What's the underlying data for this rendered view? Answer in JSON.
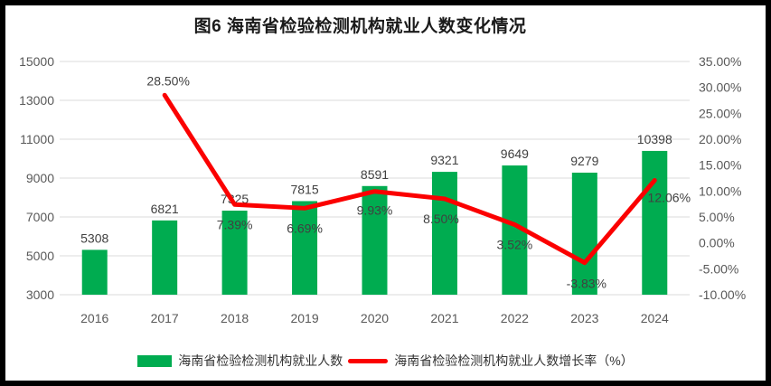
{
  "title": "图6  海南省检验检测机构就业人数变化情况",
  "chart_data": {
    "type": "bar+line combo",
    "title": "图6  海南省检验检测机构就业人数变化情况",
    "categories": [
      "2016",
      "2017",
      "2018",
      "2019",
      "2020",
      "2021",
      "2022",
      "2023",
      "2024"
    ],
    "series": [
      {
        "name": "海南省检验检测机构就业人数",
        "type": "bar",
        "axis": "left",
        "color": "#00AC50",
        "values": [
          5308,
          6821,
          7325,
          7815,
          8591,
          9321,
          9649,
          9279,
          10398
        ],
        "labels": [
          "5308",
          "6821",
          "7325",
          "7815",
          "8591",
          "9321",
          "9649",
          "9279",
          "10398"
        ]
      },
      {
        "name": "海南省检验检测机构就业人数增长率（%）",
        "type": "line",
        "axis": "right",
        "color": "#FB0000",
        "values": [
          null,
          28.5,
          7.39,
          6.69,
          9.93,
          8.5,
          3.52,
          -3.83,
          12.06
        ],
        "labels": [
          "28.50%",
          "7.39%",
          "6.69%",
          "9.93%",
          "8.50%",
          "3.52%",
          "-3.83%",
          "12.06%"
        ],
        "label_offsets": [
          [
            4,
            -11
          ],
          [
            0,
            27
          ],
          [
            0,
            27
          ],
          [
            0,
            26
          ],
          [
            -4,
            27
          ],
          [
            0,
            27
          ],
          [
            2,
            28
          ],
          [
            16,
            24
          ]
        ]
      }
    ],
    "left_axis": {
      "min": 3000,
      "max": 15000,
      "step": 2000,
      "ticks": [
        "3000",
        "5000",
        "7000",
        "9000",
        "11000",
        "13000",
        "15000"
      ]
    },
    "right_axis": {
      "min": -10,
      "max": 35,
      "step": 5,
      "ticks": [
        "-10.00%",
        "-5.00%",
        "0.00%",
        "5.00%",
        "10.00%",
        "15.00%",
        "20.00%",
        "25.00%",
        "30.00%",
        "35.00%"
      ]
    },
    "grid": true,
    "legend_position": "bottom"
  },
  "colors": {
    "bar_green": "#00AC50",
    "line_red": "#FB0000",
    "gridline": "#E2E2E2",
    "axis_text": "#595959",
    "data_label": "#404040",
    "frame_border": "#000000",
    "background": "#FFFFFF"
  }
}
